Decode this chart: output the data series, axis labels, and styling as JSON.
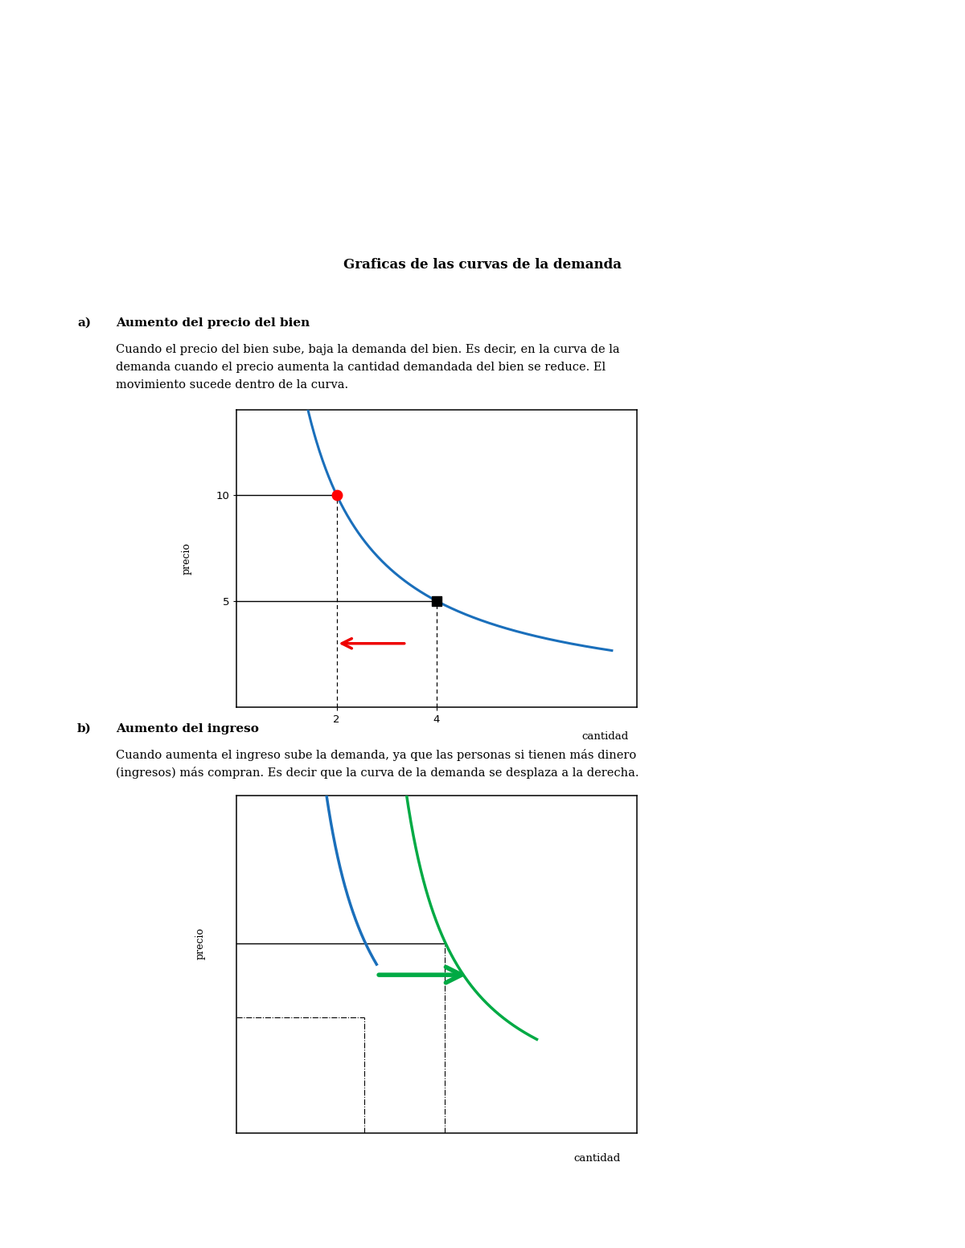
{
  "title": "Graficas de las curvas de la demanda",
  "section_a_bold": "Aumento del precio del bien",
  "section_a_label": "a)",
  "section_a_text_line1": "Cuando el precio del bien sube, baja la demanda del bien. Es decir, en la curva de la",
  "section_a_text_line2": "demanda cuando el precio aumenta la cantidad demandada del bien se reduce. El",
  "section_a_text_line3": "movimiento sucede dentro de la curva.",
  "section_b_bold": "Aumento del ingreso",
  "section_b_label": "b)",
  "section_b_text_line1": "Cuando aumenta el ingreso sube la demanda, ya que las personas si tienen más dinero",
  "section_b_text_line2": "(ingresos) más compran. Es decir que la curva de la demanda se desplaza a la derecha.",
  "curve_color_blue": "#1a6fbb",
  "curve_color_green": "#00aa44",
  "point_red": "#ff0000",
  "point_black": "#000000",
  "arrow_red": "#ee0000",
  "arrow_green": "#00aa44",
  "bg_color": "#ffffff",
  "chart1_xlim": [
    0,
    8
  ],
  "chart1_ylim": [
    0,
    14
  ],
  "chart1_xticks": [
    2,
    4
  ],
  "chart1_yticks": [
    5,
    10
  ],
  "chart1_xlabel": "cantidad",
  "chart1_ylabel": "precio",
  "chart2_xlabel": "cantidad",
  "chart2_ylabel": "precio"
}
